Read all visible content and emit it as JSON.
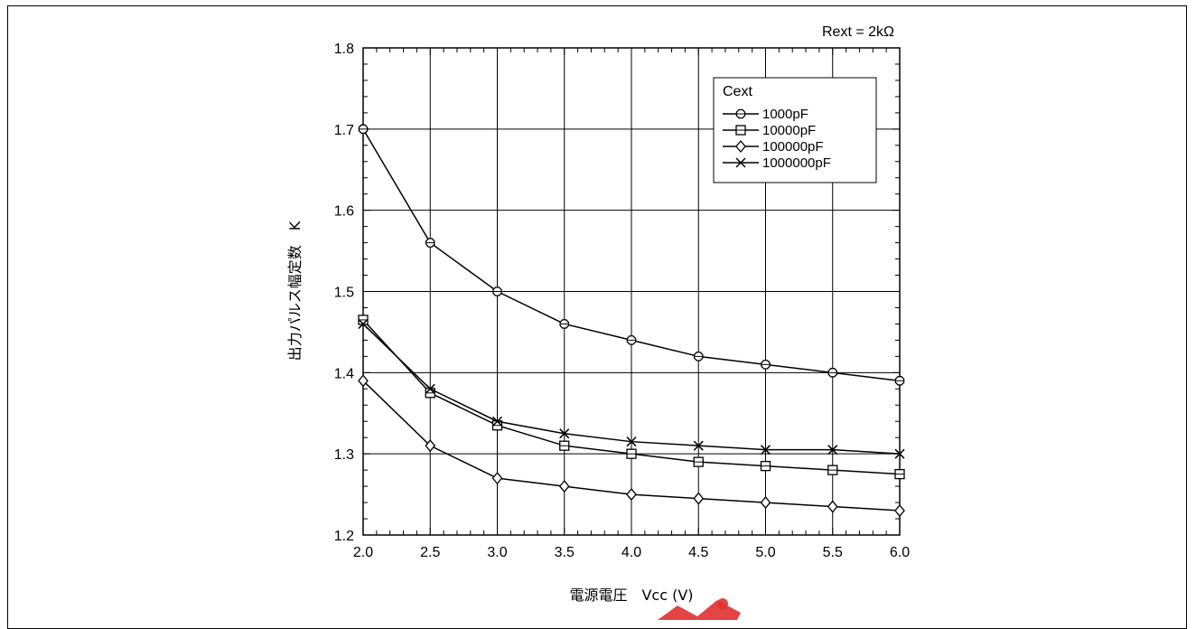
{
  "chart_data": {
    "type": "line",
    "title": "",
    "annotation": "Rext = 2kΩ",
    "xlabel": "電源電圧　Vcc (V)",
    "ylabel": "出力パルス幅定数　K",
    "xlim": [
      2.0,
      6.0
    ],
    "ylim": [
      1.2,
      1.8
    ],
    "x_ticks": [
      "2.0",
      "2.5",
      "3.0",
      "3.5",
      "4.0",
      "4.5",
      "5.0",
      "5.5",
      "6.0"
    ],
    "y_ticks": [
      "1.2",
      "1.3",
      "1.4",
      "1.5",
      "1.6",
      "1.7",
      "1.8"
    ],
    "grid": true,
    "legend_title": "Cext",
    "legend_position": "top-right",
    "x": [
      2.0,
      2.5,
      3.0,
      3.5,
      4.0,
      4.5,
      5.0,
      5.5,
      6.0
    ],
    "series": [
      {
        "name": "1000pF",
        "marker": "octagon",
        "values": [
          1.7,
          1.56,
          1.5,
          1.46,
          1.44,
          1.42,
          1.41,
          1.4,
          1.39
        ]
      },
      {
        "name": "10000pF",
        "marker": "square",
        "values": [
          1.465,
          1.375,
          1.335,
          1.31,
          1.3,
          1.29,
          1.285,
          1.28,
          1.275
        ]
      },
      {
        "name": "100000pF",
        "marker": "diamond",
        "values": [
          1.39,
          1.31,
          1.27,
          1.26,
          1.25,
          1.245,
          1.24,
          1.235,
          1.23
        ]
      },
      {
        "name": "1000000pF",
        "marker": "cross",
        "values": [
          1.46,
          1.38,
          1.34,
          1.325,
          1.315,
          1.31,
          1.305,
          1.305,
          1.3
        ]
      }
    ],
    "line_color": "#000000",
    "grid_color": "#000000"
  },
  "watermark_color": "#e03030"
}
